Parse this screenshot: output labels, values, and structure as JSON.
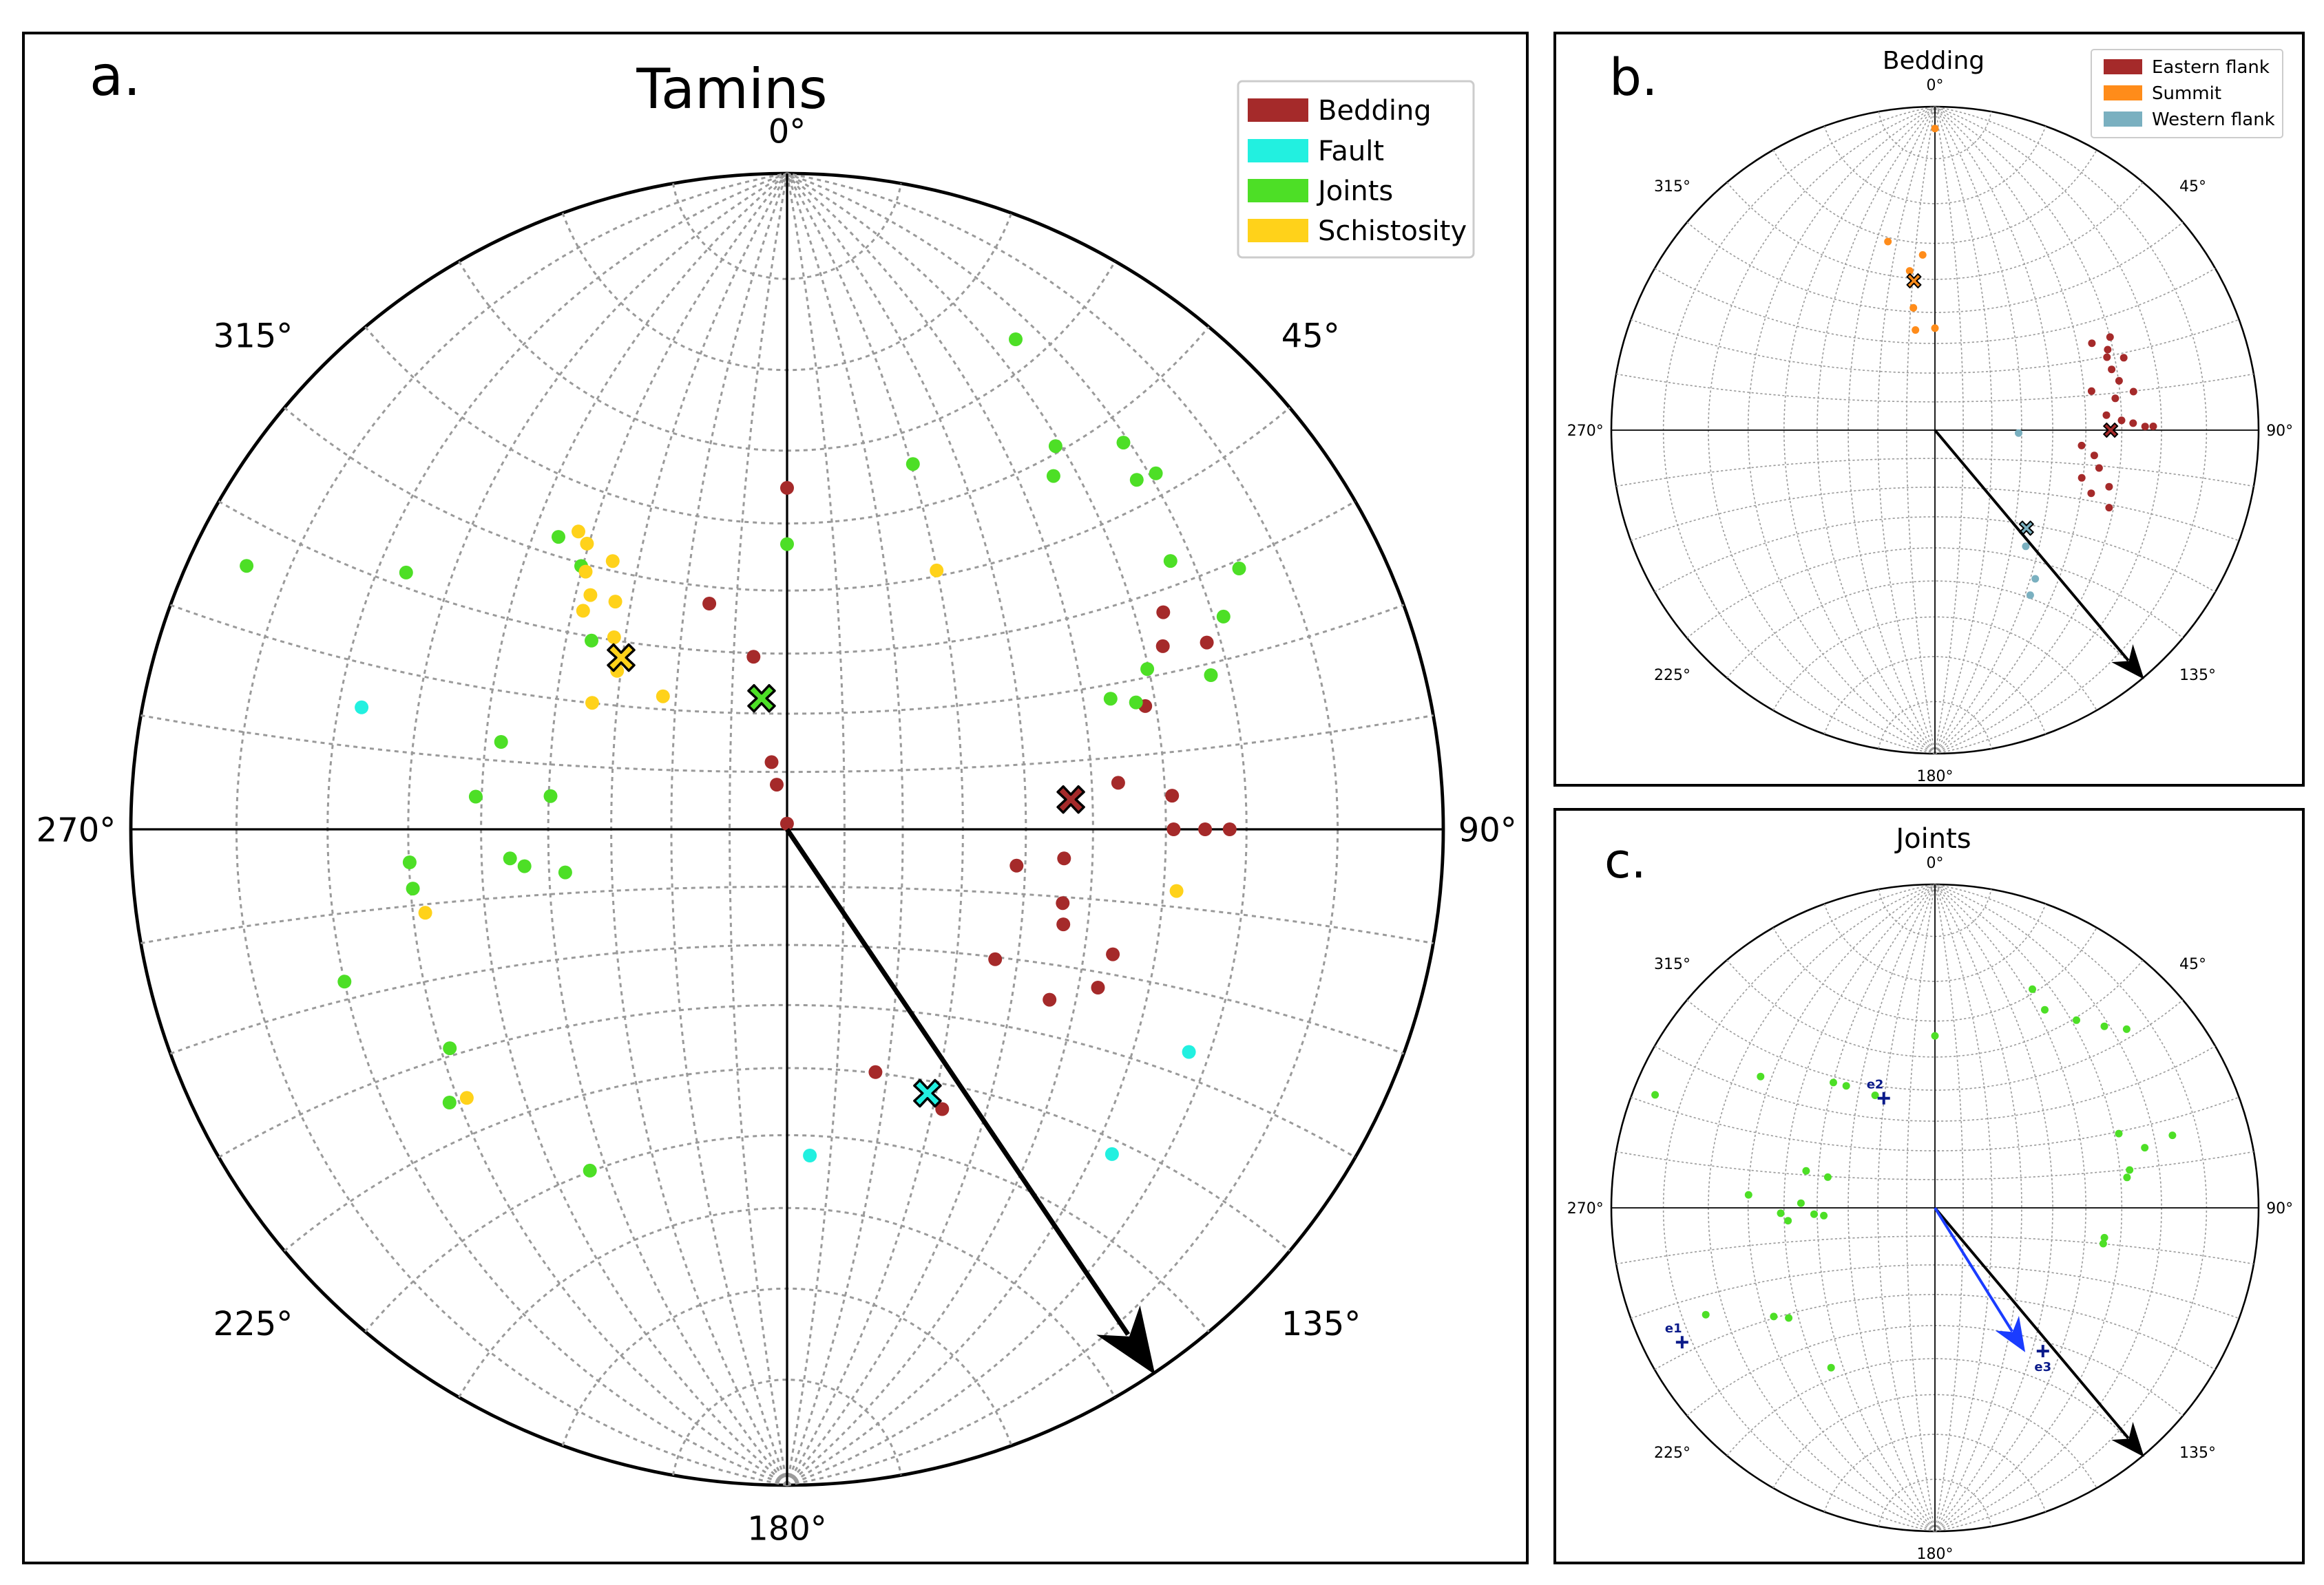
{
  "colors": {
    "bedding": "#a52a2a",
    "fault": "#22f0e0",
    "joints": "#4ddf26",
    "schistosity": "#ffd21a",
    "eastern_flank": "#a52a2a",
    "summit": "#ff8c1a",
    "western_flank": "#7ab0c0",
    "arrow": "#000000",
    "arrow_blue": "#1a3cff",
    "eigen": "#0a1a8a",
    "grid": "#9a9a9a"
  },
  "chart_data": [
    {
      "type": "scatter",
      "subtype": "stereonet (lower hemisphere, equal-angle)",
      "panel_label": "a.",
      "title": "Tamins",
      "azimuth_labels": [
        "0°",
        "45°",
        "90°",
        "135°",
        "180°",
        "225°",
        "270°",
        "315°"
      ],
      "legend": [
        "Bedding",
        "Fault",
        "Joints",
        "Schistosity"
      ],
      "legend_position": "top-right",
      "grid": true,
      "arrow": {
        "trend": 146,
        "plunge": 0
      },
      "series": [
        {
          "name": "Bedding",
          "points": [
            {
              "trend": 0,
              "plunge": 35
            },
            {
              "trend": 341,
              "plunge": 50
            },
            {
              "trend": 349,
              "plunge": 60
            },
            {
              "trend": 347,
              "plunge": 78
            },
            {
              "trend": 359,
              "plunge": 89
            },
            {
              "trend": 347,
              "plunge": 82
            },
            {
              "trend": 71,
              "plunge": 30
            },
            {
              "trend": 64,
              "plunge": 25
            },
            {
              "trend": 60,
              "plunge": 23
            },
            {
              "trend": 66,
              "plunge": 20
            },
            {
              "trend": 82,
              "plunge": 36
            },
            {
              "trend": 85,
              "plunge": 29
            },
            {
              "trend": 90,
              "plunge": 29
            },
            {
              "trend": 90,
              "plunge": 25
            },
            {
              "trend": 90,
              "plunge": 22
            },
            {
              "trend": 96,
              "plunge": 44
            },
            {
              "trend": 99,
              "plunge": 51
            },
            {
              "trend": 105,
              "plunge": 43
            },
            {
              "trend": 109,
              "plunge": 42
            },
            {
              "trend": 111,
              "plunge": 34
            },
            {
              "trend": 122,
              "plunge": 49
            },
            {
              "trend": 117,
              "plunge": 34
            },
            {
              "trend": 123,
              "plunge": 39
            },
            {
              "trend": 160,
              "plunge": 47
            },
            {
              "trend": 151,
              "plunge": 38
            }
          ]
        },
        {
          "name": "Fault",
          "points": [
            {
              "trend": 286,
              "plunge": 22
            },
            {
              "trend": 176,
              "plunge": 37
            },
            {
              "trend": 119,
              "plunge": 20
            },
            {
              "trend": 135,
              "plunge": 20
            }
          ]
        },
        {
          "name": "Joints",
          "points": [
            {
              "trend": 25,
              "plunge": 11
            },
            {
              "trend": 19,
              "plunge": 29
            },
            {
              "trend": 0,
              "plunge": 43
            },
            {
              "trend": 35,
              "plunge": 19
            },
            {
              "trend": 37,
              "plunge": 22
            },
            {
              "trend": 41,
              "plunge": 14
            },
            {
              "trend": 45,
              "plunge": 16
            },
            {
              "trend": 46,
              "plunge": 14
            },
            {
              "trend": 55,
              "plunge": 19
            },
            {
              "trend": 60,
              "plunge": 13
            },
            {
              "trend": 64,
              "plunge": 17
            },
            {
              "trend": 70,
              "plunge": 21
            },
            {
              "trend": 66,
              "plunge": 28
            },
            {
              "trend": 70,
              "plunge": 31
            },
            {
              "trend": 68,
              "plunge": 34
            },
            {
              "trend": 322,
              "plunge": 31
            },
            {
              "trend": 322,
              "plunge": 36
            },
            {
              "trend": 314,
              "plunge": 45
            },
            {
              "trend": 296,
              "plunge": 5
            },
            {
              "trend": 304,
              "plunge": 20
            },
            {
              "trend": 287,
              "plunge": 41
            },
            {
              "trend": 278,
              "plunge": 50
            },
            {
              "trend": 276,
              "plunge": 39
            },
            {
              "trend": 264,
              "plunge": 44
            },
            {
              "trend": 259,
              "plunge": 52
            },
            {
              "trend": 262,
              "plunge": 46
            },
            {
              "trend": 265,
              "plunge": 30
            },
            {
              "trend": 261,
              "plunge": 30
            },
            {
              "trend": 251,
              "plunge": 19
            },
            {
              "trend": 237,
              "plunge": 27
            },
            {
              "trend": 231,
              "plunge": 23
            },
            {
              "trend": 210,
              "plunge": 28
            }
          ]
        },
        {
          "name": "Schistosity",
          "points": [
            {
              "trend": 325,
              "plunge": 32
            },
            {
              "trend": 325,
              "plunge": 34
            },
            {
              "trend": 322,
              "plunge": 37
            },
            {
              "trend": 327,
              "plunge": 38
            },
            {
              "trend": 320,
              "plunge": 40
            },
            {
              "trend": 317,
              "plunge": 41
            },
            {
              "trend": 323,
              "plunge": 43
            },
            {
              "trend": 318,
              "plunge": 47
            },
            {
              "trend": 313,
              "plunge": 51
            },
            {
              "trend": 303,
              "plunge": 51
            },
            {
              "trend": 30,
              "plunge": 41
            },
            {
              "trend": 317,
              "plunge": 59
            },
            {
              "trend": 99,
              "plunge": 28
            },
            {
              "trend": 257,
              "plunge": 31
            },
            {
              "trend": 230,
              "plunge": 25
            }
          ]
        }
      ],
      "mean_poles": [
        {
          "name": "Bedding",
          "trend": 84,
          "plunge": 43
        },
        {
          "name": "Fault",
          "trend": 152,
          "plunge": 41
        },
        {
          "name": "Joints",
          "trend": 349,
          "plunge": 67
        },
        {
          "name": "Schistosity",
          "trend": 316,
          "plunge": 50
        }
      ]
    },
    {
      "type": "scatter",
      "subtype": "stereonet (lower hemisphere, equal-angle)",
      "panel_label": "b.",
      "title": "Bedding",
      "azimuth_labels": [
        "0°",
        "45°",
        "90°",
        "135°",
        "180°",
        "225°",
        "270°",
        "315°"
      ],
      "legend": [
        "Eastern flank",
        "Summit",
        "Western flank"
      ],
      "legend_position": "top-right",
      "grid": true,
      "arrow": {
        "trend": 140,
        "plunge": 0
      },
      "series": [
        {
          "name": "Eastern flank",
          "points": [
            {
              "trend": 61,
              "plunge": 32
            },
            {
              "trend": 65,
              "plunge": 29
            },
            {
              "trend": 62,
              "plunge": 27
            },
            {
              "trend": 67,
              "plunge": 30
            },
            {
              "trend": 69,
              "plunge": 26
            },
            {
              "trend": 71,
              "plunge": 30
            },
            {
              "trend": 75,
              "plunge": 29
            },
            {
              "trend": 76,
              "plunge": 37
            },
            {
              "trend": 79,
              "plunge": 26
            },
            {
              "trend": 80,
              "plunge": 31
            },
            {
              "trend": 85,
              "plunge": 34
            },
            {
              "trend": 87,
              "plunge": 30
            },
            {
              "trend": 88,
              "plunge": 27
            },
            {
              "trend": 89,
              "plunge": 22
            },
            {
              "trend": 89,
              "plunge": 24
            },
            {
              "trend": 96,
              "plunge": 41
            },
            {
              "trend": 99,
              "plunge": 37
            },
            {
              "trend": 103,
              "plunge": 35
            },
            {
              "trend": 108,
              "plunge": 39
            },
            {
              "trend": 112,
              "plunge": 35
            },
            {
              "trend": 114,
              "plunge": 29
            },
            {
              "trend": 108,
              "plunge": 31
            }
          ]
        },
        {
          "name": "Summit",
          "points": [
            {
              "trend": 0,
              "plunge": 4
            },
            {
              "trend": 346,
              "plunge": 28
            },
            {
              "trend": 356,
              "plunge": 33
            },
            {
              "trend": 351,
              "plunge": 37
            },
            {
              "trend": 350,
              "plunge": 48
            },
            {
              "trend": 349,
              "plunge": 55
            },
            {
              "trend": 0,
              "plunge": 55
            }
          ]
        },
        {
          "name": "Western flank",
          "points": [
            {
              "trend": 92,
              "plunge": 61
            },
            {
              "trend": 146,
              "plunge": 32
            },
            {
              "trend": 150,
              "plunge": 29
            },
            {
              "trend": 142,
              "plunge": 41
            }
          ]
        }
      ],
      "mean_poles": [
        {
          "name": "Eastern flank",
          "trend": 90,
          "plunge": 33
        },
        {
          "name": "Summit",
          "trend": 352,
          "plunge": 40
        },
        {
          "name": "Western flank",
          "trend": 137,
          "plunge": 45
        }
      ]
    },
    {
      "type": "scatter",
      "subtype": "stereonet (lower hemisphere, equal-angle)",
      "panel_label": "c.",
      "title": "Joints",
      "azimuth_labels": [
        "0°",
        "45°",
        "90°",
        "135°",
        "180°",
        "225°",
        "270°",
        "315°"
      ],
      "grid": true,
      "arrows": [
        {
          "color": "black",
          "trend": 140,
          "plunge": 0
        },
        {
          "color": "blue",
          "trend": 148,
          "plunge": 35
        }
      ],
      "eigenvectors": [
        {
          "label": "e1",
          "trend": 242,
          "plunge": 7
        },
        {
          "label": "e2",
          "trend": 335,
          "plunge": 49
        },
        {
          "label": "e3",
          "trend": 143,
          "plunge": 32
        }
      ],
      "series": [
        {
          "name": "Joints",
          "points": [
            {
              "trend": 24,
              "plunge": 17
            },
            {
              "trend": 29,
              "plunge": 20
            },
            {
              "trend": 37,
              "plunge": 18
            },
            {
              "trend": 43,
              "plunge": 15
            },
            {
              "trend": 47,
              "plunge": 12
            },
            {
              "trend": 68,
              "plunge": 27
            },
            {
              "trend": 74,
              "plunge": 22
            },
            {
              "trend": 79,
              "plunge": 27
            },
            {
              "trend": 73,
              "plunge": 15
            },
            {
              "trend": 81,
              "plunge": 28
            },
            {
              "trend": 100,
              "plunge": 34
            },
            {
              "trend": 102,
              "plunge": 34
            },
            {
              "trend": 0,
              "plunge": 34
            },
            {
              "trend": 321,
              "plunge": 37
            },
            {
              "trend": 324,
              "plunge": 40
            },
            {
              "trend": 332,
              "plunge": 47
            },
            {
              "trend": 307,
              "plunge": 22
            },
            {
              "trend": 292,
              "plunge": 4
            },
            {
              "trend": 286,
              "plunge": 45
            },
            {
              "trend": 286,
              "plunge": 52
            },
            {
              "trend": 274,
              "plunge": 30
            },
            {
              "trend": 272,
              "plunge": 45
            },
            {
              "trend": 268,
              "plunge": 39
            },
            {
              "trend": 267,
              "plunge": 49
            },
            {
              "trend": 266,
              "plunge": 52
            },
            {
              "trend": 265,
              "plunge": 41
            },
            {
              "trend": 245,
              "plunge": 14
            },
            {
              "trend": 236,
              "plunge": 28
            },
            {
              "trend": 233,
              "plunge": 31
            },
            {
              "trend": 213,
              "plunge": 29
            }
          ]
        }
      ]
    }
  ]
}
